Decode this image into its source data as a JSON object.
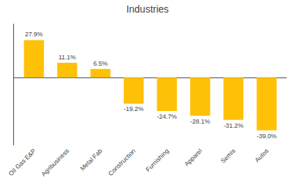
{
  "chart_data": {
    "type": "bar",
    "title": "Industries",
    "categories": [
      "Oil Gas E&P",
      "Agribusiness",
      "Metal Fab",
      "Construction",
      "Furnishing",
      "Apparel",
      "Semis",
      "Autos"
    ],
    "values": [
      27.9,
      11.1,
      6.5,
      -19.2,
      -24.7,
      -28.1,
      -31.2,
      -39.0
    ],
    "value_labels": [
      "27.9%",
      "11.1%",
      "6.5%",
      "-19.2%",
      "-24.7%",
      "-28.1%",
      "-31.2%",
      "-39.0%"
    ],
    "data_labels": true,
    "color": "#FFC107",
    "ylim": [
      -50,
      40
    ],
    "grid": false,
    "tick_labels": "x"
  }
}
